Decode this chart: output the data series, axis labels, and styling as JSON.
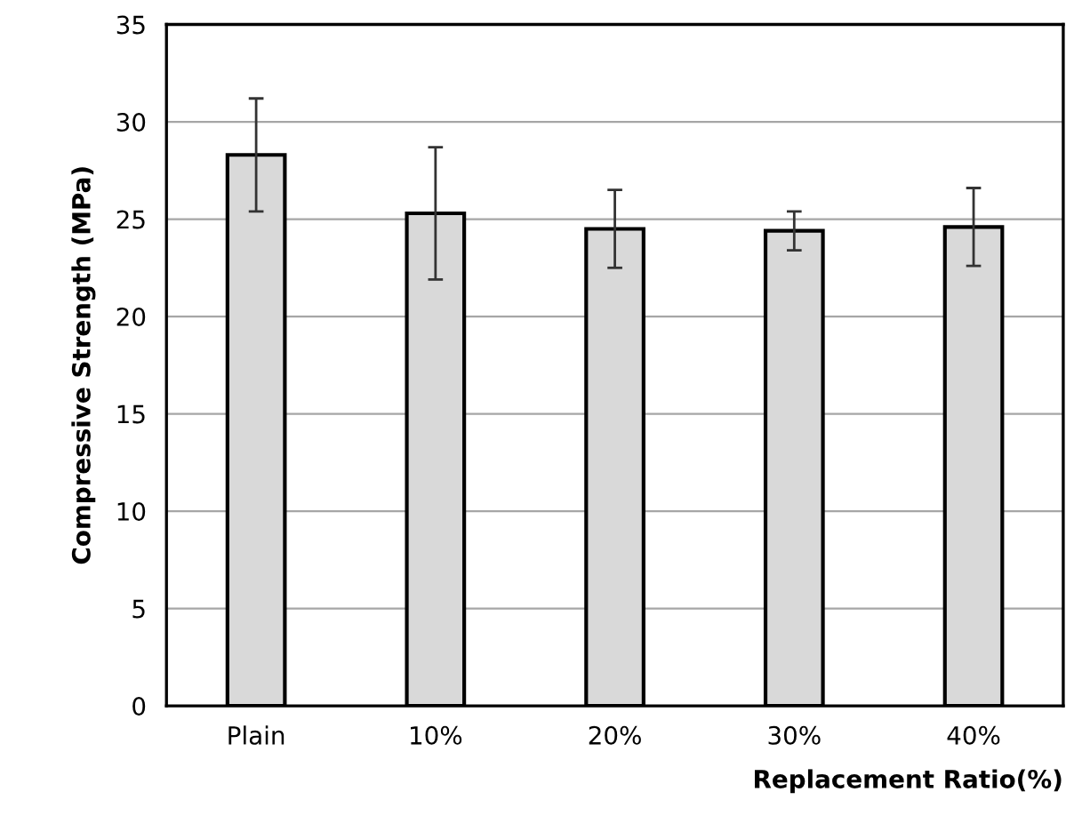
{
  "chart_data": {
    "type": "bar",
    "categories": [
      "Plain",
      "10%",
      "20%",
      "30%",
      "40%"
    ],
    "values": [
      28.3,
      25.3,
      24.5,
      24.4,
      24.6
    ],
    "errors": [
      2.9,
      3.4,
      2.0,
      1.0,
      2.0
    ],
    "color": "#d9d9d9",
    "xlabel": "Replacement Ratio(%)",
    "ylabel": "Compressive Strength (MPa)",
    "ylim": [
      0,
      35
    ],
    "yticks": [
      0,
      5,
      10,
      15,
      20,
      25,
      30,
      35
    ],
    "grid": "y",
    "legend": false
  }
}
